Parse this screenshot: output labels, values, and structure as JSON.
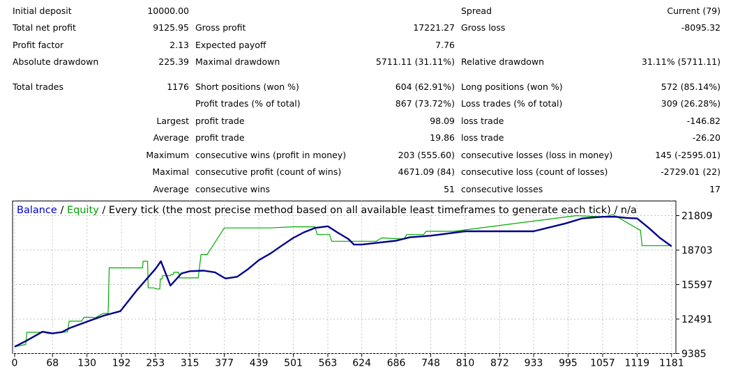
{
  "report": {
    "rows": [
      {
        "c1": "Initial deposit",
        "c2": "10000.00",
        "c3": "",
        "c4": "",
        "c5": "Spread",
        "c6": "Current (79)"
      },
      {
        "c1": "Total net profit",
        "c2": "9125.95",
        "c3": "Gross profit",
        "c4": "17221.27",
        "c5": "Gross loss",
        "c6": "-8095.32"
      },
      {
        "c1": "Profit factor",
        "c2": "2.13",
        "c3": "Expected payoff",
        "c4": "7.76",
        "c5": "",
        "c6": ""
      },
      {
        "c1": "Absolute drawdown",
        "c2": "225.39",
        "c3": "Maximal drawdown",
        "c4": "5711.11 (31.11%)",
        "c5": "Relative drawdown",
        "c6": "31.11% (5711.11)"
      },
      {
        "c1": "Total trades",
        "c2": "1176",
        "c3": "Short positions (won %)",
        "c4": "604 (62.91%)",
        "c5": "Long positions (won %)",
        "c6": "572 (85.14%)"
      },
      {
        "c1": "",
        "c2": "",
        "c3": "Profit trades (% of total)",
        "c4": "867 (73.72%)",
        "c5": "Loss trades (% of total)",
        "c6": "309 (26.28%)"
      },
      {
        "c1": "",
        "c2": "Largest",
        "c3": "profit trade",
        "c4": "98.09",
        "c5": "loss trade",
        "c6": "-146.82"
      },
      {
        "c1": "",
        "c2": "Average",
        "c3": "profit trade",
        "c4": "19.86",
        "c5": "loss trade",
        "c6": "-26.20"
      },
      {
        "c1": "",
        "c2": "Maximum",
        "c3": "consecutive wins (profit in money)",
        "c4": "203 (555.60)",
        "c5": "consecutive losses (loss in money)",
        "c6": "145 (-2595.01)"
      },
      {
        "c1": "",
        "c2": "Maximal",
        "c3": "consecutive profit (count of wins)",
        "c4": "4671.09 (84)",
        "c5": "consecutive loss (count of losses)",
        "c6": "-2729.01 (22)"
      },
      {
        "c1": "",
        "c2": "Average",
        "c3": "consecutive wins",
        "c4": "51",
        "c5": "consecutive losses",
        "c6": "17"
      }
    ]
  },
  "colors": {
    "balance": "#00008b",
    "equity": "#00aa00",
    "grid": "#c0c0c0",
    "legend_balance": "#0000cc",
    "legend_equity": "#00a000"
  },
  "chart_data": {
    "type": "line",
    "title_balance": "Balance",
    "title_equity": "Equity",
    "title_sep": " / ",
    "title_rest": " / Every tick (the most precise method based on all available least timeframes to generate each tick) / n/a",
    "x_ticks": [
      0,
      68,
      130,
      192,
      253,
      315,
      377,
      439,
      501,
      563,
      624,
      686,
      748,
      810,
      872,
      933,
      995,
      1057,
      1119,
      1181
    ],
    "y_ticks": [
      9385,
      12491,
      15597,
      18703,
      21809
    ],
    "xlim": [
      0,
      1185
    ],
    "ylim": [
      9385,
      21809
    ],
    "grid": true,
    "series": [
      {
        "name": "Balance",
        "x": [
          0,
          20,
          50,
          68,
          85,
          100,
          130,
          160,
          190,
          220,
          253,
          263,
          280,
          300,
          315,
          340,
          360,
          377,
          380,
          400,
          420,
          439,
          460,
          480,
          501,
          520,
          540,
          563,
          580,
          600,
          610,
          624,
          650,
          686,
          710,
          748,
          780,
          810,
          850,
          900,
          933,
          990,
          1020,
          1057,
          1080,
          1100,
          1119,
          1140,
          1160,
          1181
        ],
        "y": [
          10000,
          10500,
          11350,
          11200,
          11320,
          11700,
          12250,
          12800,
          13200,
          15100,
          17000,
          17700,
          15500,
          16600,
          16800,
          16850,
          16700,
          16200,
          16150,
          16300,
          17000,
          17800,
          18400,
          19100,
          19800,
          20300,
          20700,
          20850,
          20300,
          19700,
          19200,
          19200,
          19350,
          19550,
          19850,
          20000,
          20200,
          20400,
          20400,
          20400,
          20400,
          21100,
          21550,
          21700,
          21700,
          21600,
          21550,
          20700,
          19800,
          19050
        ]
      },
      {
        "name": "Equity",
        "x": [
          0,
          10,
          20,
          22,
          45,
          50,
          60,
          70,
          95,
          98,
          120,
          125,
          140,
          145,
          155,
          160,
          168,
          170,
          190,
          200,
          230,
          231,
          239,
          240,
          250,
          255,
          261,
          262,
          265,
          266,
          280,
          281,
          285,
          286,
          295,
          296,
          310,
          330,
          335,
          345,
          346,
          377,
          385,
          410,
          425,
          455,
          458,
          500,
          540,
          544,
          566,
          570,
          590,
          600,
          630,
          632,
          650,
          660,
          660,
          700,
          705,
          735,
          740,
          780,
          790,
          1009,
          1010,
          1060,
          1061,
          1075,
          1076,
          1082,
          1083,
          1124,
          1125,
          1128,
          1129,
          1181
        ],
        "y": [
          10000,
          10100,
          10200,
          11300,
          11300,
          11350,
          11200,
          11200,
          11350,
          12300,
          12300,
          12650,
          12650,
          12600,
          12900,
          13000,
          13000,
          17100,
          17100,
          17100,
          17100,
          17700,
          17700,
          15300,
          15300,
          15200,
          15200,
          16100,
          16100,
          16400,
          16400,
          16500,
          16500,
          16700,
          16700,
          16200,
          16200,
          16200,
          18300,
          18300,
          18300,
          20700,
          20700,
          20700,
          20700,
          20700,
          20700,
          20800,
          20800,
          20100,
          20100,
          19500,
          19500,
          19500,
          19500,
          19500,
          19500,
          19800,
          19800,
          19700,
          20100,
          20100,
          20400,
          20400,
          20400,
          21800,
          21800,
          21700,
          21700,
          21900,
          21900,
          21700,
          21700,
          20500,
          20500,
          19100,
          19100,
          19100
        ]
      }
    ]
  }
}
